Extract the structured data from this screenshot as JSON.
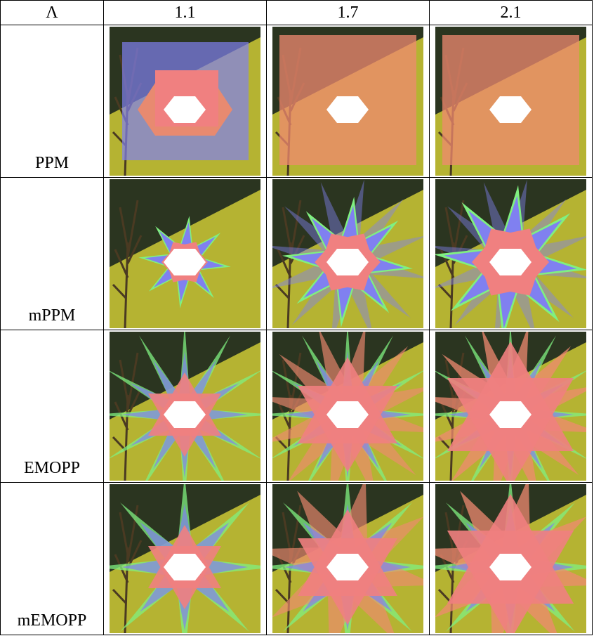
{
  "table": {
    "header": [
      "Λ",
      "1.1",
      "1.7",
      "2.1"
    ],
    "rows": [
      {
        "label": "PPM"
      },
      {
        "label": "mPPM"
      },
      {
        "label": "EMOPP"
      },
      {
        "label": "mEMOPP"
      }
    ]
  }
}
